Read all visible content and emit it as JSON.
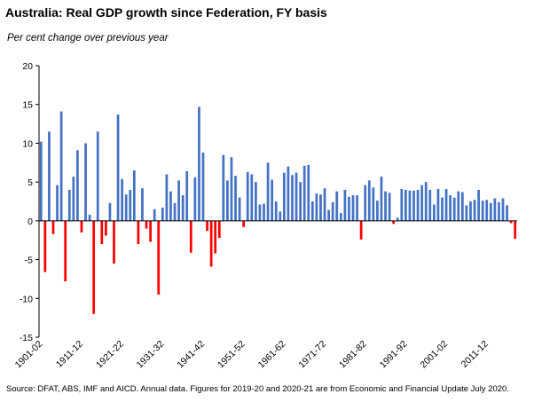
{
  "title": "Australia: Real GDP growth since Federation, FY basis",
  "subtitle": "Per cent change over previous year",
  "source": "Source: DFAT, ABS, IMF and AICD.  Annual data.  Figures for 2019-20 and 2020-21 are from Economic and Financial Update July 2020.",
  "colors": {
    "positive": "#4472C4",
    "negative": "#FF0000"
  },
  "chart_data": {
    "type": "bar",
    "title": "Australia: Real GDP growth since Federation, FY basis",
    "ylabel": "Per cent change over previous year",
    "ylim": [
      -15,
      20
    ],
    "yticks": [
      20,
      15,
      10,
      5,
      0,
      -5,
      -10,
      -15
    ],
    "grid": false,
    "xtick_labels": [
      "1901-02",
      "1911-12",
      "1921-22",
      "1931-32",
      "1941-42",
      "1951-52",
      "1961-62",
      "1971-72",
      "1981-82",
      "1991-92",
      "2001-02",
      "2011-12"
    ],
    "xtick_every": 10,
    "series": [
      {
        "values": [
          10.2,
          -6.6,
          11.5,
          -1.7,
          4.6,
          14.1,
          -7.8,
          4.0,
          5.7,
          9.1,
          -1.5,
          10.0,
          0.8,
          -12.0,
          11.5,
          -3.0,
          -1.9,
          2.3,
          -5.5,
          13.7,
          5.4,
          3.4,
          4.0,
          6.5,
          -3.0,
          4.2,
          -1.0,
          -2.7,
          1.5,
          -9.5,
          1.7,
          6.0,
          3.8,
          2.3,
          5.2,
          3.3,
          6.4,
          -4.1,
          5.6,
          14.7,
          8.8,
          -1.3,
          -5.9,
          -4.2,
          -2.2,
          8.5,
          5.2,
          8.2,
          5.8,
          3.0,
          -0.8,
          6.3,
          6.0,
          5.0,
          2.1,
          2.2,
          7.5,
          5.3,
          2.5,
          1.2,
          6.2,
          7.0,
          5.9,
          6.2,
          5.0,
          7.1,
          7.2,
          2.5,
          3.5,
          3.4,
          4.2,
          1.4,
          2.4,
          3.8,
          1.0,
          4.0,
          3.1,
          3.3,
          3.3,
          -2.4,
          4.6,
          5.2,
          4.3,
          2.6,
          5.7,
          3.8,
          3.6,
          -0.4,
          0.4,
          4.1,
          4.0,
          3.9,
          3.9,
          4.0,
          4.6,
          5.0,
          4.0,
          2.1,
          4.1,
          3.0,
          4.1,
          3.3,
          3.0,
          3.8,
          3.7,
          2.0,
          2.5,
          2.7,
          4.0,
          2.6,
          2.7,
          2.3,
          2.9,
          2.4,
          2.9,
          2.0,
          -0.3,
          -2.3
        ]
      }
    ]
  }
}
